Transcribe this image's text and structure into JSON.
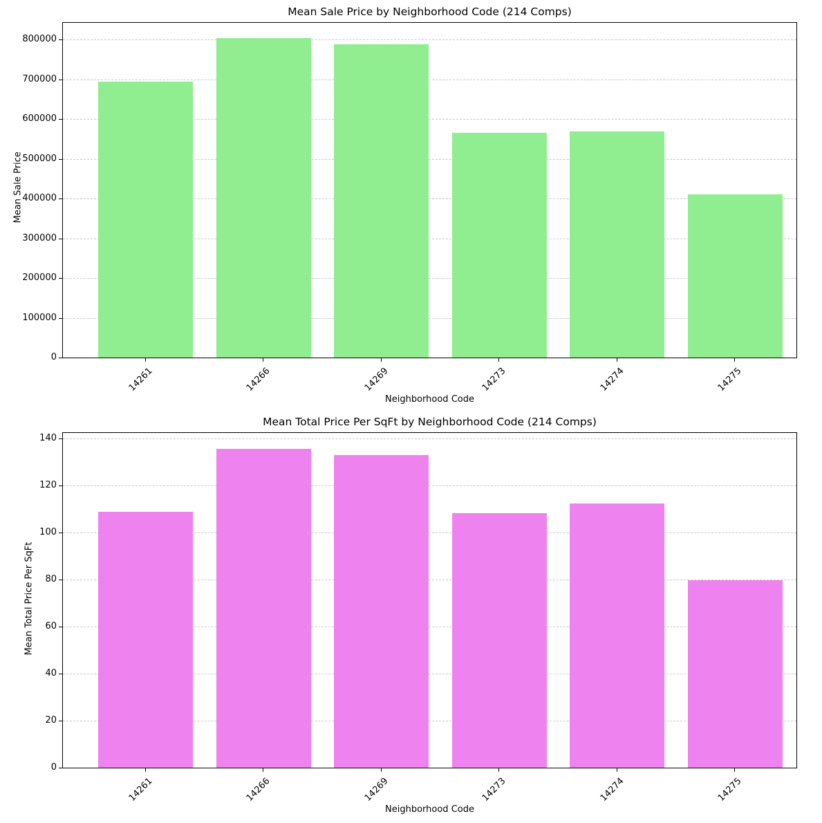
{
  "chart_data": [
    {
      "type": "bar",
      "title": "Mean Sale Price by Neighborhood Code (214 Comps)",
      "xlabel": "Neighborhood Code",
      "ylabel": "Mean Sale Price",
      "categories": [
        "14261",
        "14266",
        "14269",
        "14273",
        "14274",
        "14275"
      ],
      "values": [
        695000,
        804000,
        788000,
        565000,
        569000,
        411000
      ],
      "ylim": [
        0,
        842000
      ],
      "yticks": [
        0,
        100000,
        200000,
        300000,
        400000,
        500000,
        600000,
        700000,
        800000
      ],
      "ytick_labels": [
        "0",
        "100000",
        "200000",
        "300000",
        "400000",
        "500000",
        "600000",
        "700000",
        "800000"
      ],
      "grid": "y dashed",
      "color": "#90ee90",
      "legend": null
    },
    {
      "type": "bar",
      "title": "Mean Total Price Per SqFt by Neighborhood Code (214 Comps)",
      "xlabel": "Neighborhood Code",
      "ylabel": "Mean Total Price Per SqFt",
      "categories": [
        "14261",
        "14266",
        "14269",
        "14273",
        "14274",
        "14275"
      ],
      "values": [
        108.9,
        135.7,
        133.0,
        108.3,
        112.4,
        79.9
      ],
      "ylim": [
        0,
        142.5
      ],
      "yticks": [
        0,
        20,
        40,
        60,
        80,
        100,
        120,
        140
      ],
      "ytick_labels": [
        "0",
        "20",
        "40",
        "60",
        "80",
        "100",
        "120",
        "140"
      ],
      "grid": "y dashed",
      "color": "#ee82ee",
      "legend": null
    }
  ]
}
